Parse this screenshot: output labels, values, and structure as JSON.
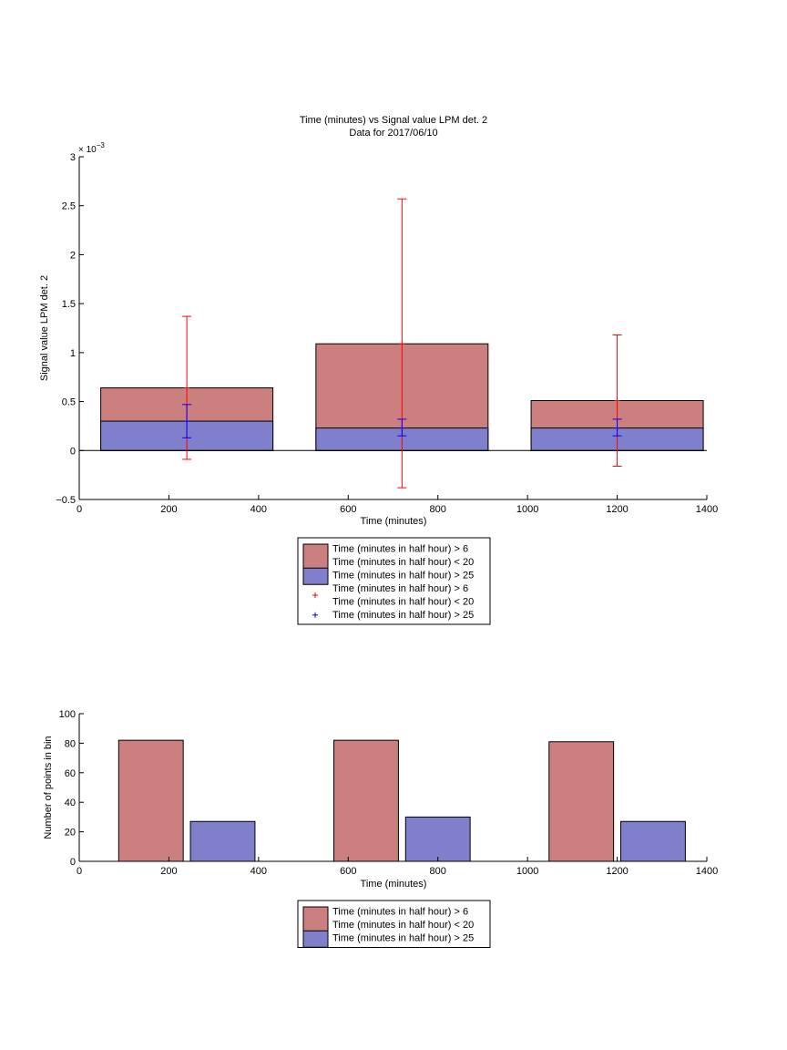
{
  "colors": {
    "red_bar": "#cc7f7f",
    "blue_bar": "#7f7fcc",
    "red_err": "#ff0000",
    "blue_err": "#0000ff",
    "axis": "#000000"
  },
  "chart_data": [
    {
      "type": "bar",
      "title": "Time (minutes) vs Signal value LPM det. 2",
      "subtitle": "Data for 2017/06/10",
      "xlabel": "Time (minutes)",
      "ylabel": "Signal value LPM det. 2",
      "y_exponent_label": "× 10",
      "y_exponent_power": "−3",
      "xlim": [
        0,
        1400
      ],
      "ylim": [
        -0.5,
        3
      ],
      "y_scale_note": "values in units of 1e-3",
      "xticks": [
        0,
        200,
        400,
        600,
        800,
        1000,
        1200,
        1400
      ],
      "yticks": [
        -0.5,
        0,
        0.5,
        1,
        1.5,
        2,
        2.5,
        3
      ],
      "grid": false,
      "bar_style": "stacked-overlay",
      "bars": [
        {
          "x": 240,
          "width": 384,
          "red": 0.64,
          "blue": 0.3
        },
        {
          "x": 720,
          "width": 384,
          "red": 1.09,
          "blue": 0.23
        },
        {
          "x": 1200,
          "width": 384,
          "red": 0.51,
          "blue": 0.23
        }
      ],
      "series": [
        {
          "name": "Time (minutes in half hour) > 6\nTime (minutes in half hour) < 20",
          "color_key": "red_bar",
          "values": [
            0.64,
            1.09,
            0.51
          ]
        },
        {
          "name": "Time (minutes in half hour) > 25",
          "color_key": "blue_bar",
          "values": [
            0.3,
            0.23,
            0.23
          ]
        }
      ],
      "error_bars": [
        {
          "name": "Time (minutes in half hour) > 6\nTime (minutes in half hour) < 20",
          "color_key": "red_err",
          "points": [
            {
              "x": 240,
              "center": 0.64,
              "low": -0.09,
              "high": 1.37
            },
            {
              "x": 720,
              "center": 1.09,
              "low": -0.38,
              "high": 2.57
            },
            {
              "x": 1200,
              "center": 0.51,
              "low": -0.16,
              "high": 1.18
            }
          ]
        },
        {
          "name": "Time (minutes in half hour) > 25",
          "color_key": "blue_err",
          "points": [
            {
              "x": 240,
              "center": 0.3,
              "low": 0.13,
              "high": 0.47
            },
            {
              "x": 720,
              "center": 0.23,
              "low": 0.15,
              "high": 0.32
            },
            {
              "x": 1200,
              "center": 0.23,
              "low": 0.15,
              "high": 0.32
            }
          ]
        }
      ],
      "legend": {
        "placement": "below",
        "entries": [
          {
            "kind": "patch",
            "color_key": "red_bar",
            "lines": [
              "Time (minutes in half hour) > 6",
              "Time (minutes in half hour) < 20"
            ]
          },
          {
            "kind": "patch",
            "color_key": "blue_bar",
            "lines": [
              "Time (minutes in half hour) > 25"
            ]
          },
          {
            "kind": "marker",
            "color_key": "red_err",
            "lines": [
              "Time (minutes in half hour) > 6",
              "Time (minutes in half hour) < 20"
            ]
          },
          {
            "kind": "marker",
            "color_key": "blue_err",
            "lines": [
              "Time (minutes in half hour) > 25"
            ]
          }
        ]
      }
    },
    {
      "type": "bar",
      "title": "",
      "xlabel": "Time (minutes)",
      "ylabel": "Number of points in bin",
      "xlim": [
        0,
        1400
      ],
      "ylim": [
        0,
        100
      ],
      "xticks": [
        0,
        200,
        400,
        600,
        800,
        1000,
        1200,
        1400
      ],
      "yticks": [
        0,
        20,
        40,
        60,
        80,
        100
      ],
      "grid": false,
      "bars": [
        {
          "x": 160,
          "width": 144,
          "value": 82,
          "color_key": "red_bar"
        },
        {
          "x": 320,
          "width": 144,
          "value": 27,
          "color_key": "blue_bar"
        },
        {
          "x": 640,
          "width": 144,
          "value": 82,
          "color_key": "red_bar"
        },
        {
          "x": 800,
          "width": 144,
          "value": 30,
          "color_key": "blue_bar"
        },
        {
          "x": 1120,
          "width": 144,
          "value": 81,
          "color_key": "red_bar"
        },
        {
          "x": 1280,
          "width": 144,
          "value": 27,
          "color_key": "blue_bar"
        }
      ],
      "series": [
        {
          "name": "Time (minutes in half hour) > 6\nTime (minutes in half hour) < 20",
          "color_key": "red_bar",
          "values": [
            82,
            82,
            81
          ]
        },
        {
          "name": "Time (minutes in half hour) > 25",
          "color_key": "blue_bar",
          "values": [
            27,
            30,
            27
          ]
        }
      ],
      "legend": {
        "placement": "below",
        "entries": [
          {
            "kind": "patch",
            "color_key": "red_bar",
            "lines": [
              "Time (minutes in half hour) > 6",
              "Time (minutes in half hour) < 20"
            ]
          },
          {
            "kind": "patch",
            "color_key": "blue_bar",
            "lines": [
              "Time (minutes in half hour) > 25"
            ]
          }
        ]
      }
    }
  ]
}
